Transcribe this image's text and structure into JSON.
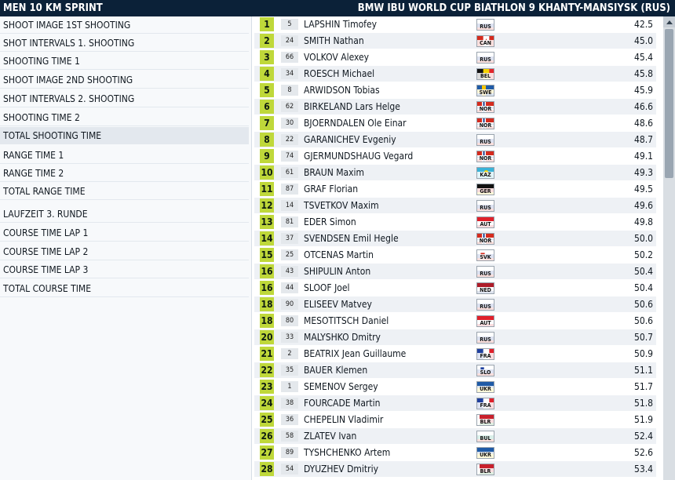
{
  "title": {
    "event": "MEN 10 KM SPRINT",
    "competition": "BMW IBU WORLD CUP BIATHLON 9 KHANTY-MANSIYSK (RUS)"
  },
  "sidebar": {
    "items": [
      {
        "label": "SHOOT IMAGE 1ST SHOOTING"
      },
      {
        "label": "SHOT INTERVALS 1. SHOOTING"
      },
      {
        "label": "SHOOTING TIME 1"
      },
      {
        "label": "SHOOT IMAGE 2ND SHOOTING"
      },
      {
        "label": "SHOT INTERVALS 2. SHOOTING"
      },
      {
        "label": "SHOOTING TIME 2"
      },
      {
        "label": "TOTAL SHOOTING TIME",
        "selected": true
      },
      {
        "label": "RANGE TIME 1"
      },
      {
        "label": "RANGE TIME 2"
      },
      {
        "label": "TOTAL RANGE TIME"
      },
      {
        "label": "LAUFZEIT 3. RUNDE"
      },
      {
        "label": "COURSE TIME LAP 1"
      },
      {
        "label": "COURSE TIME LAP 2"
      },
      {
        "label": "COURSE TIME LAP 3"
      },
      {
        "label": "TOTAL COURSE TIME"
      }
    ]
  },
  "colors": {
    "title_bg": "#0b2138",
    "rank_bg": "#bfd83a",
    "row_alt": "#eef1f5"
  },
  "results": [
    {
      "rank": "1",
      "bib": "5",
      "name": "LAPSHIN Timofey",
      "nation": "RUS",
      "time": "42.5"
    },
    {
      "rank": "2",
      "bib": "24",
      "name": "SMITH Nathan",
      "nation": "CAN",
      "time": "45.0"
    },
    {
      "rank": "3",
      "bib": "66",
      "name": "VOLKOV Alexey",
      "nation": "RUS",
      "time": "45.4"
    },
    {
      "rank": "4",
      "bib": "34",
      "name": "ROESCH Michael",
      "nation": "BEL",
      "time": "45.8"
    },
    {
      "rank": "5",
      "bib": "8",
      "name": "ARWIDSON Tobias",
      "nation": "SWE",
      "time": "45.9"
    },
    {
      "rank": "6",
      "bib": "62",
      "name": "BIRKELAND Lars Helge",
      "nation": "NOR",
      "time": "46.6"
    },
    {
      "rank": "7",
      "bib": "30",
      "name": "BJOERNDALEN Ole Einar",
      "nation": "NOR",
      "time": "48.6"
    },
    {
      "rank": "8",
      "bib": "22",
      "name": "GARANICHEV Evgeniy",
      "nation": "RUS",
      "time": "48.7"
    },
    {
      "rank": "9",
      "bib": "74",
      "name": "GJERMUNDSHAUG Vegard",
      "nation": "NOR",
      "time": "49.1"
    },
    {
      "rank": "10",
      "bib": "61",
      "name": "BRAUN Maxim",
      "nation": "KAZ",
      "time": "49.3"
    },
    {
      "rank": "11",
      "bib": "87",
      "name": "GRAF Florian",
      "nation": "GER",
      "time": "49.5"
    },
    {
      "rank": "12",
      "bib": "14",
      "name": "TSVETKOV Maxim",
      "nation": "RUS",
      "time": "49.6"
    },
    {
      "rank": "13",
      "bib": "81",
      "name": "EDER Simon",
      "nation": "AUT",
      "time": "49.8"
    },
    {
      "rank": "14",
      "bib": "37",
      "name": "SVENDSEN Emil Hegle",
      "nation": "NOR",
      "time": "50.0"
    },
    {
      "rank": "15",
      "bib": "25",
      "name": "OTCENAS Martin",
      "nation": "SVK",
      "time": "50.2"
    },
    {
      "rank": "16",
      "bib": "43",
      "name": "SHIPULIN Anton",
      "nation": "RUS",
      "time": "50.4"
    },
    {
      "rank": "16",
      "bib": "44",
      "name": "SLOOF Joel",
      "nation": "NED",
      "time": "50.4"
    },
    {
      "rank": "18",
      "bib": "90",
      "name": "ELISEEV Matvey",
      "nation": "RUS",
      "time": "50.6"
    },
    {
      "rank": "18",
      "bib": "80",
      "name": "MESOTITSCH Daniel",
      "nation": "AUT",
      "time": "50.6"
    },
    {
      "rank": "20",
      "bib": "33",
      "name": "MALYSHKO Dmitry",
      "nation": "RUS",
      "time": "50.7"
    },
    {
      "rank": "21",
      "bib": "2",
      "name": "BEATRIX Jean Guillaume",
      "nation": "FRA",
      "time": "50.9"
    },
    {
      "rank": "22",
      "bib": "35",
      "name": "BAUER Klemen",
      "nation": "SLO",
      "time": "51.1"
    },
    {
      "rank": "23",
      "bib": "1",
      "name": "SEMENOV Sergey",
      "nation": "UKR",
      "time": "51.7"
    },
    {
      "rank": "24",
      "bib": "38",
      "name": "FOURCADE Martin",
      "nation": "FRA",
      "time": "51.8"
    },
    {
      "rank": "25",
      "bib": "36",
      "name": "CHEPELIN Vladimir",
      "nation": "BLR",
      "time": "51.9"
    },
    {
      "rank": "26",
      "bib": "58",
      "name": "ZLATEV Ivan",
      "nation": "BUL",
      "time": "52.4"
    },
    {
      "rank": "27",
      "bib": "89",
      "name": "TYSHCHENKO Artem",
      "nation": "UKR",
      "time": "52.6"
    },
    {
      "rank": "28",
      "bib": "54",
      "name": "DYUZHEV Dmitriy",
      "nation": "BLR",
      "time": "53.4"
    }
  ]
}
